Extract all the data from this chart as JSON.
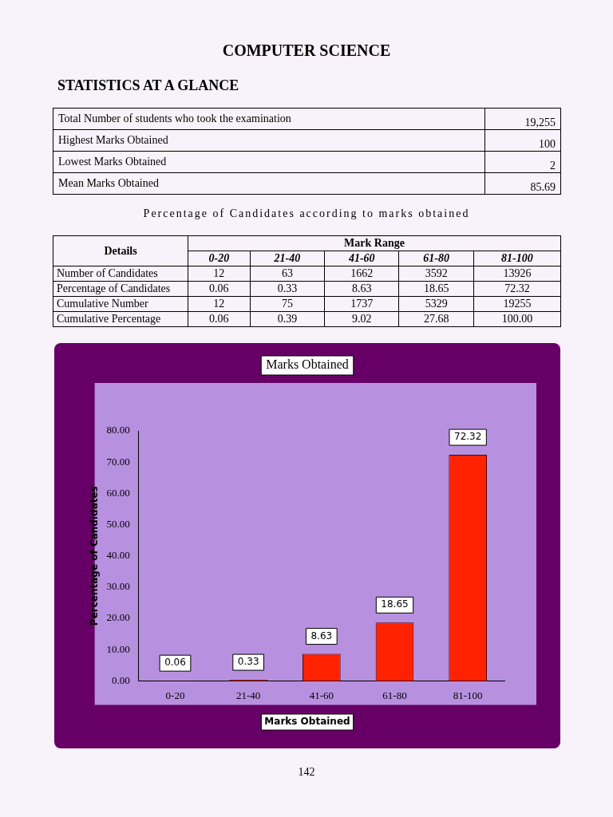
{
  "chart_data": [
    {
      "type": "other",
      "title": "COMPUTER SCIENCE",
      "subtitle": "STATISTICS AT A GLANCE",
      "annotations": [
        "Total Number of students who took the examination",
        "19,255",
        "Highest Marks Obtained",
        "100",
        "Lowest Marks Obtained",
        "2",
        "Mean Marks Obtained",
        "85.69",
        "Percentage of Candidates according to marks obtained",
        "Details",
        "Mark Range",
        "0-20",
        "21-40",
        "41-60",
        "61-80",
        "81-100",
        "Number of Candidates",
        "12",
        "63",
        "1662",
        "3592",
        "13926",
        "Percentage of Candidates",
        "0.06",
        "0.33",
        "8.63",
        "18.65",
        "72.32",
        "Cumulative Number",
        "12",
        "75",
        "1737",
        "5329",
        "19255",
        "Cumulative Percentage",
        "0.06",
        "0.39",
        "9.02",
        "27.68",
        "100.00",
        "142"
      ]
    },
    {
      "type": "bar",
      "title": "Marks Obtained",
      "xlabel": "Marks Obtained",
      "ylabel": "Percentage of Candidates",
      "categories": [
        "0-20",
        "21-40",
        "41-60",
        "61-80",
        "81-100"
      ],
      "values": [
        0.06,
        0.33,
        8.63,
        18.65,
        72.32
      ],
      "color": "#ff2200",
      "ylim": [
        0,
        80
      ],
      "yticks": [
        {
          "value": 0,
          "label": "0.00"
        },
        {
          "value": 10,
          "label": "10.00"
        },
        {
          "value": 20,
          "label": "20.00"
        },
        {
          "value": 30,
          "label": "30.00"
        },
        {
          "value": 40,
          "label": "40.00"
        },
        {
          "value": 50,
          "label": "50.00"
        },
        {
          "value": 60,
          "label": "60.00"
        },
        {
          "value": 70,
          "label": "70.00"
        },
        {
          "value": 80,
          "label": "80.00"
        }
      ],
      "data_labels": true,
      "grid": false,
      "legend": false
    }
  ]
}
